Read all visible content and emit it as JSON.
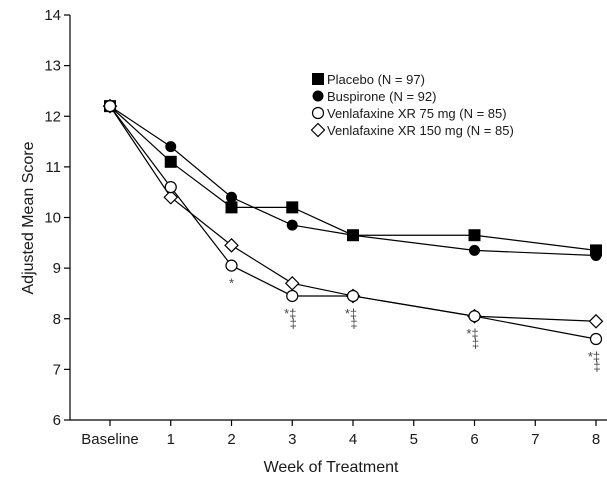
{
  "chart_data": {
    "type": "line",
    "xlabel": "Week of Treatment",
    "ylabel": "Adjusted Mean Score",
    "ylim": [
      6,
      14
    ],
    "yticks": [
      6,
      7,
      8,
      9,
      10,
      11,
      12,
      13,
      14
    ],
    "x_categories": [
      "Baseline",
      "1",
      "2",
      "3",
      "4",
      "5",
      "6",
      "7",
      "8"
    ],
    "grid": false,
    "legend_position": "top-right",
    "series": [
      {
        "name": "Placebo (N = 97)",
        "marker": "filled-square",
        "color": "#000000",
        "x": [
          0,
          1,
          2,
          3,
          4,
          6,
          8
        ],
        "values": [
          12.2,
          11.1,
          10.2,
          10.2,
          9.65,
          9.65,
          9.35
        ]
      },
      {
        "name": "Buspirone (N = 92)",
        "marker": "filled-circle",
        "color": "#000000",
        "x": [
          0,
          1,
          2,
          3,
          4,
          6,
          8
        ],
        "values": [
          12.2,
          11.4,
          10.4,
          9.85,
          9.65,
          9.35,
          9.25
        ]
      },
      {
        "name": "Venlafaxine XR 75 mg (N = 85)",
        "marker": "open-circle",
        "color": "#000000",
        "x": [
          0,
          1,
          2,
          3,
          4,
          6,
          8
        ],
        "values": [
          12.2,
          10.6,
          9.05,
          8.45,
          8.45,
          8.05,
          7.6
        ]
      },
      {
        "name": "Venlafaxine XR 150 mg (N = 85)",
        "marker": "open-diamond",
        "color": "#000000",
        "x": [
          0,
          1,
          2,
          3,
          4,
          6,
          8
        ],
        "values": [
          12.2,
          10.4,
          9.45,
          8.7,
          8.45,
          8.05,
          7.95
        ]
      }
    ],
    "annotations": [
      {
        "x": 2,
        "lines": [
          "*"
        ]
      },
      {
        "x": 3,
        "lines": [
          "*‡",
          "‡"
        ]
      },
      {
        "x": 4,
        "lines": [
          "*‡",
          "‡"
        ]
      },
      {
        "x": 6,
        "lines": [
          "*‡",
          "‡"
        ]
      },
      {
        "x": 8,
        "lines": [
          "*‡",
          "‡"
        ]
      }
    ]
  }
}
